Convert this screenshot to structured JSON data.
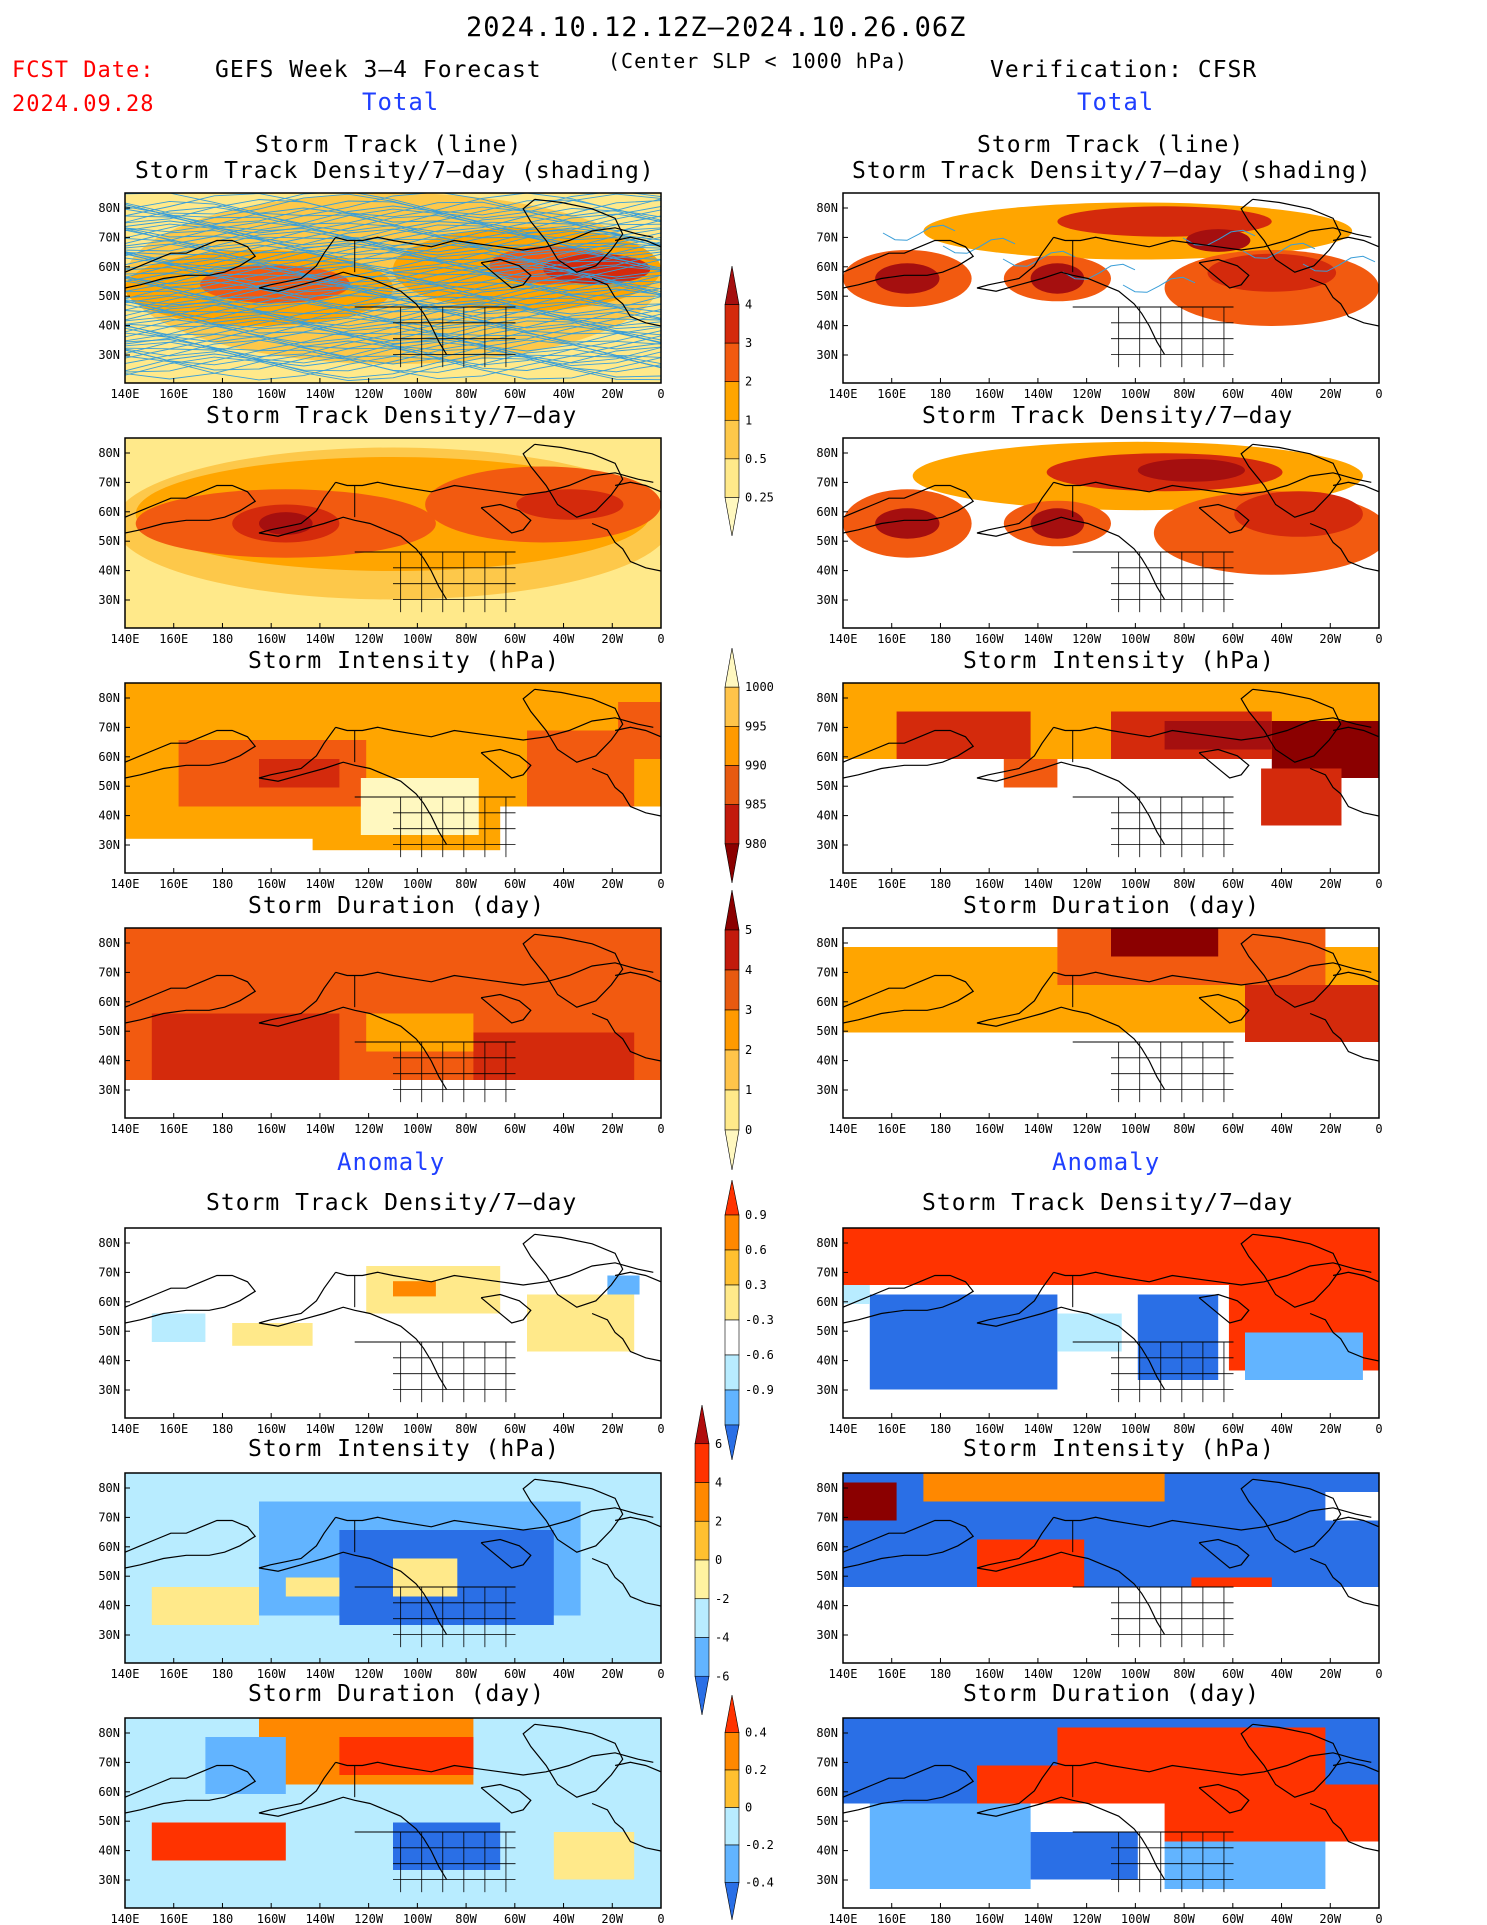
{
  "header": {
    "title": "2024.10.12.12Z–2024.10.26.06Z",
    "fcst_label": "FCST Date:",
    "fcst_date": "2024.09.28",
    "left_header": "GEFS Week 3–4 Forecast",
    "subtitle": "(Center SLP < 1000 hPa)",
    "right_header": "Verification: CFSR",
    "total_label": "Total",
    "anomaly_label": "Anomaly"
  },
  "axes": {
    "lon_ticks": [
      "140E",
      "160E",
      "180",
      "160W",
      "140W",
      "120W",
      "100W",
      "80W",
      "60W",
      "40W",
      "20W",
      "0"
    ],
    "lat_ticks": [
      "80N",
      "70N",
      "60N",
      "50N",
      "40N",
      "30N"
    ]
  },
  "panels": {
    "track_title_1": "Storm Track (line)",
    "track_title_2": "Storm Track Density/7–day (shading)",
    "density": "Storm Track Density/7–day",
    "intensity": "Storm Intensity (hPa)",
    "duration": "Storm Duration (day)"
  },
  "colorbars": {
    "density_total": {
      "labels": [
        "4",
        "3",
        "2",
        "1",
        "0.5",
        "0.25"
      ],
      "colors": [
        "#a50f0f",
        "#d42a0c",
        "#f25a10",
        "#ffa500",
        "#fdc84a",
        "#ffe98a",
        "#fff8c0"
      ]
    },
    "intensity_total": {
      "labels": [
        "1000",
        "995",
        "990",
        "985",
        "980"
      ],
      "colors": [
        "#fff8c0",
        "#ffc44a",
        "#ff9a00",
        "#e85a10",
        "#c21a0c",
        "#8b0000"
      ]
    },
    "duration_total": {
      "labels": [
        "5",
        "4",
        "3",
        "2",
        "1",
        "0"
      ],
      "colors": [
        "#8b0000",
        "#c21a0c",
        "#e85a10",
        "#ff9a00",
        "#ffc44a",
        "#ffe98a",
        "#fff8c0"
      ]
    },
    "density_anom": {
      "labels": [
        "0.9",
        "0.6",
        "0.3",
        "-0.3",
        "-0.6",
        "-0.9"
      ],
      "colors": [
        "#ff3300",
        "#ff8800",
        "#ffc030",
        "#ffe98a",
        "#ffffff",
        "#b8ecff",
        "#62b4ff",
        "#2a6fe6"
      ]
    },
    "intensity_anom": {
      "labels": [
        "6",
        "4",
        "2",
        "0",
        "-2",
        "-4",
        "-6"
      ],
      "colors": [
        "#b10c0c",
        "#ff3300",
        "#ff8800",
        "#ffc030",
        "#fff3a0",
        "#b8ecff",
        "#62b4ff",
        "#2a6fe6"
      ]
    },
    "duration_anom": {
      "labels": [
        "0.4",
        "0.2",
        "0",
        "-0.2",
        "-0.4"
      ],
      "colors": [
        "#ff3300",
        "#ff8800",
        "#ffc030",
        "#b8ecff",
        "#62b4ff",
        "#2a6fe6"
      ]
    }
  }
}
